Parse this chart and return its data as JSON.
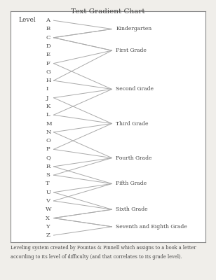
{
  "title": "Text Gradient Chart",
  "box_label": "Level",
  "letters": [
    "A",
    "B",
    "C",
    "D",
    "E",
    "F",
    "G",
    "H",
    "I",
    "J",
    "K",
    "L",
    "M",
    "N",
    "O",
    "P",
    "Q",
    "R",
    "S",
    "T",
    "U",
    "V",
    "W",
    "X",
    "Y",
    "Z"
  ],
  "grade_groups": [
    {
      "label": "Kindergarten",
      "top": "A",
      "bot": "C"
    },
    {
      "label": "First Grade",
      "top": "C",
      "bot": "F"
    },
    {
      "label": "Second Grade",
      "top": "H",
      "bot": "J"
    },
    {
      "label": "Third Grade",
      "top": "L",
      "bot": "N"
    },
    {
      "label": "Fourth Grade",
      "top": "P",
      "bot": "R"
    },
    {
      "label": "Fifth Grade",
      "top": "S",
      "bot": "U"
    },
    {
      "label": "Sixth Grade",
      "top": "V",
      "bot": "X"
    },
    {
      "label": "Seventh and Eighth Grade",
      "top": "X",
      "bot": "Z"
    }
  ],
  "crossings": [
    {
      "bot": "C",
      "top": "C"
    },
    {
      "bot": "F",
      "top": "H"
    },
    {
      "bot": "J",
      "top": "L"
    },
    {
      "bot": "N",
      "top": "P"
    },
    {
      "bot": "R",
      "top": "S"
    },
    {
      "bot": "U",
      "top": "V"
    },
    {
      "bot": "X",
      "top": "X"
    }
  ],
  "footer": "Leveling system created by Fountas & Pinnell which assigns to a book a letter\naccording to its level of difficulty (and that correlates to its grade level).",
  "line_color": "#aaaaaa",
  "text_color": "#444444",
  "bg_color": "#f0eeea",
  "box_bg": "#ffffff",
  "border_color": "#888888"
}
